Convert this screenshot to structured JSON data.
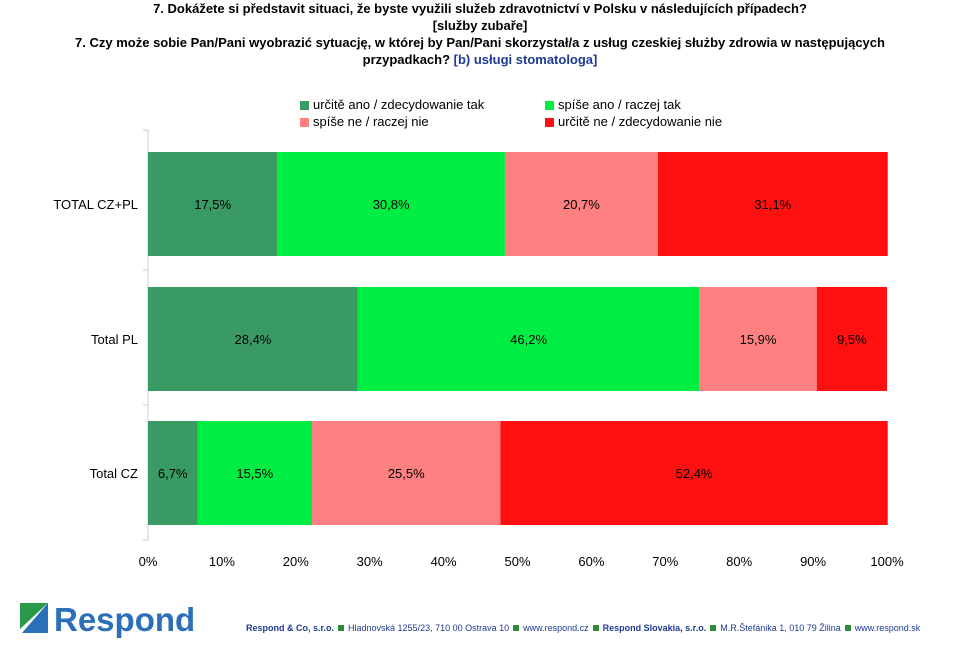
{
  "header": {
    "line1": "7. Dokážete si představit situaci, že byste využili služeb zdravotnictví v Polsku v následujících případech?",
    "line2": "[služby zubaře]",
    "line3": "7. Czy może sobie Pan/Pani wyobrazić sytuację, w której by Pan/Pani skorzystał/a z usług czeskiej służby zdrowia w następujących",
    "line4_main": "przypadkach? ",
    "line4_highlight": "[b) usługi stomatologa]"
  },
  "chart_data": {
    "type": "bar",
    "orientation": "horizontal-stacked-100",
    "categories": [
      "TOTAL CZ+PL",
      "Total PL",
      "Total CZ"
    ],
    "series": [
      {
        "name": "určitě ano / zdecydowanie tak",
        "color": "#3a9a64",
        "values": [
          17.5,
          28.4,
          6.7
        ],
        "labels": [
          "17,5%",
          "28,4%",
          "6,7%"
        ]
      },
      {
        "name": "spíše ano / raczej tak",
        "color": "#00ee44",
        "values": [
          30.8,
          46.2,
          15.5
        ],
        "labels": [
          "30,8%",
          "46,2%",
          "15,5%"
        ]
      },
      {
        "name": "spíše ne / raczej nie",
        "color": "#ff8080",
        "values": [
          20.7,
          15.9,
          25.5
        ],
        "labels": [
          "20,7%",
          "15,9%",
          "25,5%"
        ]
      },
      {
        "name": "určitě ne / zdecydowanie nie",
        "color": "#ff1010",
        "values": [
          31.1,
          9.5,
          52.4
        ],
        "labels": [
          "31,1%",
          "9,5%",
          "52,4%"
        ]
      }
    ],
    "xlim": [
      0,
      100
    ],
    "x_ticks": [
      "0%",
      "10%",
      "20%",
      "30%",
      "40%",
      "50%",
      "60%",
      "70%",
      "80%",
      "90%",
      "100%"
    ],
    "grid": false,
    "legend_position": "top"
  },
  "footer": {
    "logo_text": "Respond",
    "company1": "Respond & Co, s.r.o.",
    "address1": "Hladnovská 1255/23, 710 00  Ostrava 10",
    "web1": "www.respond.cz",
    "company2": "Respond Slovakia, s.r.o.",
    "address2": "M.R.Štefánika 1, 010 79  Žilina",
    "web2": "www.respond.sk"
  }
}
